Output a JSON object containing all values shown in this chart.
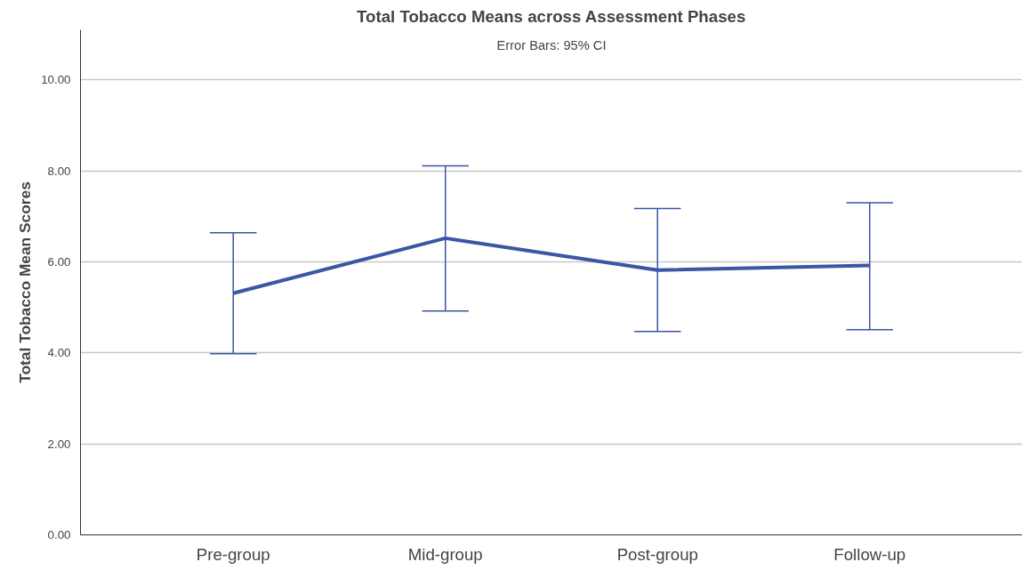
{
  "chart_data": {
    "type": "line",
    "title": "Total Tobacco Means across Assessment Phases",
    "annotations": [
      "Error Bars: 95% CI"
    ],
    "ylabel": "Total Tobacco Mean Scores",
    "categories": [
      "Pre-group",
      "Mid-group",
      "Post-group",
      "Follow-up"
    ],
    "color": "#3a56a5",
    "values": [
      5.31,
      6.52,
      5.82,
      5.92
    ],
    "errors": [
      [
        3.98,
        6.64
      ],
      [
        4.92,
        8.11
      ],
      [
        4.47,
        7.17
      ],
      [
        4.51,
        7.3
      ]
    ],
    "ylim": [
      0,
      11.1
    ],
    "yticks": [
      {
        "value": 0,
        "label": "0.00"
      },
      {
        "value": 2,
        "label": "2.00"
      },
      {
        "value": 4,
        "label": "4.00"
      },
      {
        "value": 6,
        "label": "6.00"
      },
      {
        "value": 8,
        "label": "8.00"
      },
      {
        "value": 10,
        "label": "10.00"
      }
    ],
    "grid": "y",
    "marker": "none",
    "line_style": "solid"
  }
}
